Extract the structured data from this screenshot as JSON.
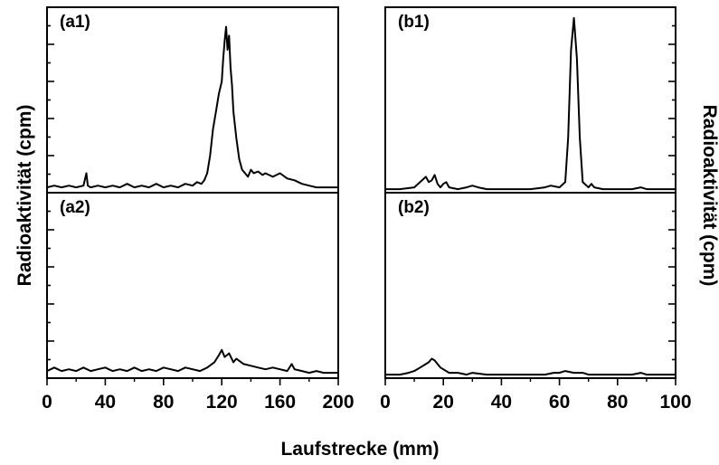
{
  "figure": {
    "xlabel": "Laufstrecke (mm)",
    "ylabel_left": "Radioaktivität (cpm)",
    "ylabel_right": "Radioaktivität (cpm)"
  },
  "chart_data": [
    {
      "type": "line",
      "panel_label": "(a1)",
      "column": "a",
      "xlim": [
        0,
        200
      ],
      "x_ticks": [
        0,
        40,
        80,
        120,
        160,
        200
      ],
      "ylim": [
        0,
        1
      ],
      "series": [
        {
          "x": [
            0,
            5,
            10,
            15,
            20,
            25,
            27,
            28,
            30,
            35,
            40,
            45,
            50,
            55,
            60,
            65,
            70,
            75,
            80,
            85,
            90,
            95,
            100,
            103,
            106,
            108,
            110,
            112,
            114,
            116,
            118,
            120,
            121,
            122,
            123,
            124,
            125,
            126,
            127,
            128,
            130,
            132,
            134,
            136,
            138,
            140,
            142,
            145,
            148,
            150,
            155,
            160,
            165,
            170,
            175,
            180,
            185,
            190,
            195,
            200
          ],
          "y": [
            0.02,
            0.03,
            0.02,
            0.03,
            0.02,
            0.03,
            0.1,
            0.03,
            0.02,
            0.03,
            0.02,
            0.03,
            0.02,
            0.04,
            0.02,
            0.03,
            0.02,
            0.04,
            0.02,
            0.03,
            0.02,
            0.04,
            0.03,
            0.05,
            0.04,
            0.06,
            0.1,
            0.2,
            0.35,
            0.45,
            0.55,
            0.62,
            0.75,
            0.85,
            0.93,
            0.8,
            0.88,
            0.7,
            0.6,
            0.45,
            0.3,
            0.18,
            0.12,
            0.1,
            0.08,
            0.12,
            0.1,
            0.11,
            0.09,
            0.1,
            0.08,
            0.1,
            0.07,
            0.06,
            0.04,
            0.03,
            0.02,
            0.02,
            0.02,
            0.02
          ]
        }
      ]
    },
    {
      "type": "line",
      "panel_label": "(a2)",
      "column": "a",
      "xlim": [
        0,
        200
      ],
      "x_ticks": [
        0,
        40,
        80,
        120,
        160,
        200
      ],
      "ylim": [
        0,
        1
      ],
      "series": [
        {
          "x": [
            0,
            5,
            10,
            15,
            20,
            25,
            30,
            35,
            40,
            45,
            50,
            55,
            60,
            65,
            70,
            75,
            80,
            85,
            90,
            95,
            100,
            105,
            110,
            115,
            118,
            120,
            122,
            125,
            128,
            130,
            135,
            140,
            145,
            150,
            155,
            160,
            165,
            168,
            170,
            175,
            180,
            185,
            190,
            195,
            200
          ],
          "y": [
            0.03,
            0.05,
            0.03,
            0.04,
            0.03,
            0.05,
            0.03,
            0.04,
            0.05,
            0.03,
            0.04,
            0.03,
            0.05,
            0.03,
            0.04,
            0.03,
            0.05,
            0.04,
            0.03,
            0.05,
            0.04,
            0.03,
            0.05,
            0.08,
            0.12,
            0.15,
            0.11,
            0.13,
            0.08,
            0.1,
            0.07,
            0.06,
            0.05,
            0.04,
            0.05,
            0.04,
            0.03,
            0.07,
            0.04,
            0.03,
            0.02,
            0.03,
            0.02,
            0.02,
            0.02
          ]
        }
      ]
    },
    {
      "type": "line",
      "panel_label": "(b1)",
      "column": "b",
      "xlim": [
        0,
        100
      ],
      "x_ticks": [
        0,
        20,
        40,
        60,
        80,
        100
      ],
      "ylim": [
        0,
        1
      ],
      "series": [
        {
          "x": [
            0,
            5,
            10,
            12,
            14,
            15,
            16,
            17,
            18,
            19,
            20,
            21,
            22,
            25,
            28,
            30,
            32,
            35,
            40,
            45,
            50,
            55,
            57,
            60,
            62,
            63,
            64,
            65,
            66,
            67,
            68,
            70,
            71,
            72,
            75,
            80,
            85,
            88,
            90,
            95,
            100
          ],
          "y": [
            0.01,
            0.01,
            0.02,
            0.05,
            0.08,
            0.05,
            0.06,
            0.09,
            0.04,
            0.02,
            0.04,
            0.05,
            0.02,
            0.01,
            0.02,
            0.03,
            0.02,
            0.01,
            0.01,
            0.01,
            0.01,
            0.02,
            0.03,
            0.02,
            0.05,
            0.3,
            0.8,
            0.98,
            0.75,
            0.3,
            0.05,
            0.02,
            0.04,
            0.02,
            0.01,
            0.01,
            0.01,
            0.02,
            0.01,
            0.01,
            0.01
          ]
        }
      ]
    },
    {
      "type": "line",
      "panel_label": "(b2)",
      "column": "b",
      "xlim": [
        0,
        100
      ],
      "x_ticks": [
        0,
        20,
        40,
        60,
        80,
        100
      ],
      "ylim": [
        0,
        1
      ],
      "series": [
        {
          "x": [
            0,
            5,
            8,
            10,
            12,
            14,
            15,
            16,
            17,
            18,
            19,
            20,
            22,
            25,
            28,
            30,
            35,
            40,
            45,
            50,
            55,
            58,
            60,
            62,
            65,
            68,
            70,
            75,
            80,
            85,
            88,
            90,
            95,
            100
          ],
          "y": [
            0.01,
            0.01,
            0.02,
            0.03,
            0.05,
            0.07,
            0.08,
            0.1,
            0.09,
            0.07,
            0.05,
            0.04,
            0.02,
            0.02,
            0.01,
            0.02,
            0.01,
            0.01,
            0.01,
            0.01,
            0.01,
            0.02,
            0.02,
            0.03,
            0.02,
            0.02,
            0.01,
            0.01,
            0.01,
            0.01,
            0.02,
            0.01,
            0.01,
            0.01
          ]
        }
      ]
    }
  ]
}
